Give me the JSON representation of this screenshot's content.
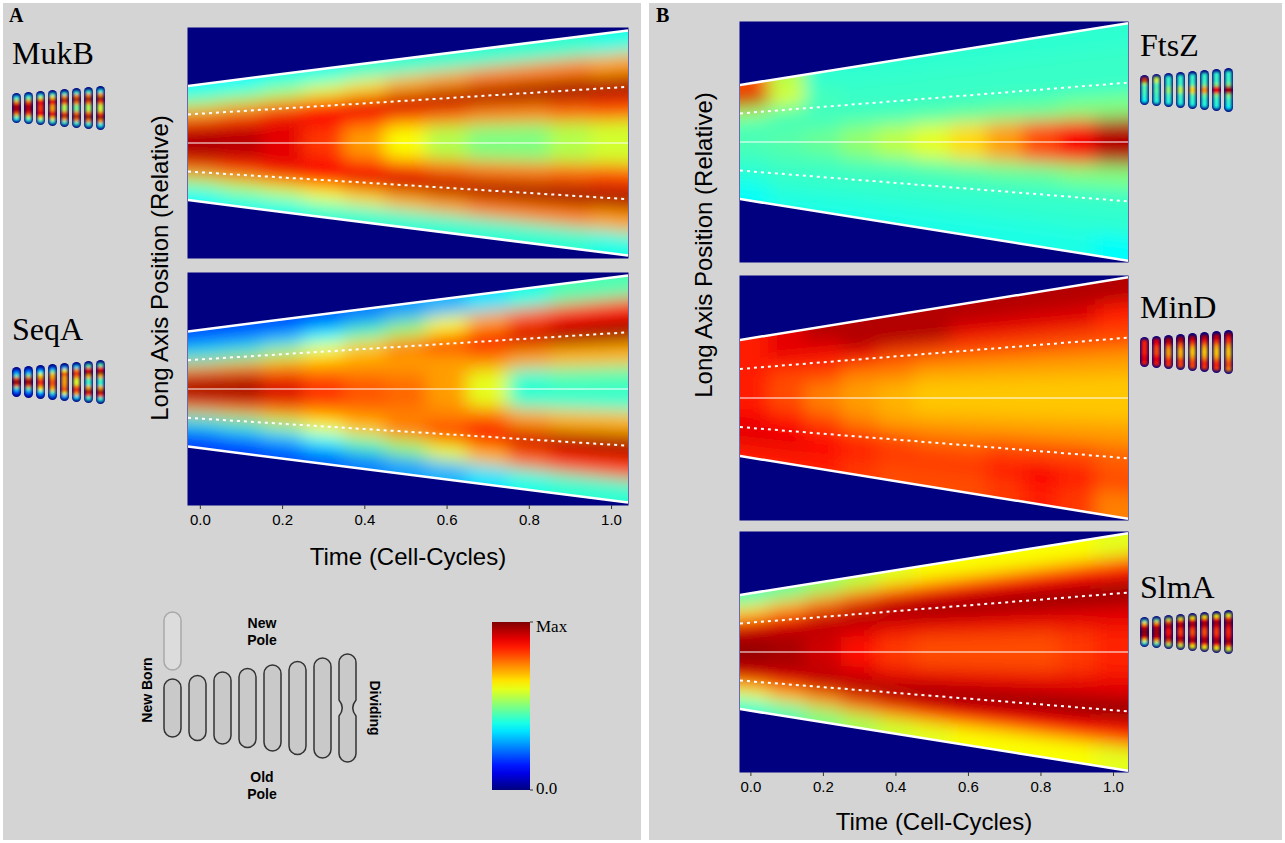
{
  "chart_data": [
    {
      "type": "heatmap",
      "title": "MukB",
      "y_label": "Long Axis Position (Relative)",
      "tick_labels": false,
      "xlim": [
        -0.03,
        1.04
      ],
      "ylim": [
        -1,
        1
      ],
      "cell_edge": [
        0.51,
        0.96
      ],
      "x": [
        0,
        0.1,
        0.2,
        0.3,
        0.4,
        0.5,
        0.6,
        0.7,
        0.8,
        0.9,
        1.0
      ],
      "positions": [
        0.9,
        0.7,
        0.5,
        0.3,
        0.1,
        -0.1,
        -0.3,
        -0.5,
        -0.7,
        -0.9
      ],
      "z": [
        [
          0.38,
          0.38,
          0.4,
          0.4,
          0.42,
          0.42,
          0.42,
          0.42,
          0.42,
          0.42,
          0.4
        ],
        [
          0.5,
          0.52,
          0.55,
          0.6,
          0.65,
          0.7,
          0.72,
          0.75,
          0.75,
          0.75,
          0.72
        ],
        [
          0.72,
          0.75,
          0.8,
          0.85,
          0.9,
          0.93,
          0.95,
          0.96,
          0.97,
          0.97,
          0.96
        ],
        [
          0.9,
          0.9,
          0.9,
          0.88,
          0.85,
          0.8,
          0.78,
          0.75,
          0.75,
          0.78,
          0.8
        ],
        [
          0.96,
          0.95,
          0.9,
          0.82,
          0.72,
          0.62,
          0.55,
          0.5,
          0.5,
          0.55,
          0.58
        ],
        [
          0.96,
          0.95,
          0.9,
          0.82,
          0.72,
          0.62,
          0.55,
          0.5,
          0.5,
          0.55,
          0.58
        ],
        [
          0.92,
          0.9,
          0.9,
          0.88,
          0.85,
          0.82,
          0.78,
          0.76,
          0.76,
          0.78,
          0.8
        ],
        [
          0.75,
          0.78,
          0.82,
          0.86,
          0.9,
          0.93,
          0.95,
          0.96,
          0.97,
          0.97,
          0.96
        ],
        [
          0.52,
          0.55,
          0.58,
          0.62,
          0.66,
          0.7,
          0.72,
          0.75,
          0.75,
          0.75,
          0.72
        ],
        [
          0.38,
          0.4,
          0.4,
          0.42,
          0.42,
          0.42,
          0.42,
          0.42,
          0.42,
          0.42,
          0.4
        ]
      ]
    },
    {
      "type": "heatmap",
      "title": "SeqA",
      "x_label": "Time (Cell-Cycles)",
      "tick_labels": "x",
      "xlim": [
        -0.03,
        1.04
      ],
      "ylim": [
        -1,
        1
      ],
      "cell_edge": [
        0.51,
        0.96
      ],
      "xticks": [
        {
          "value": 0,
          "label": "0.0"
        },
        {
          "value": 0.2,
          "label": "0.2"
        },
        {
          "value": 0.4,
          "label": "0.4"
        },
        {
          "value": 0.6,
          "label": "0.6"
        },
        {
          "value": 0.8,
          "label": "0.8"
        },
        {
          "value": 1,
          "label": "1.0"
        }
      ],
      "x": [
        0,
        0.1,
        0.2,
        0.3,
        0.4,
        0.5,
        0.6,
        0.7,
        0.8,
        0.9,
        1.0
      ],
      "positions": [
        0.9,
        0.7,
        0.5,
        0.3,
        0.1,
        -0.1,
        -0.3,
        -0.5,
        -0.7,
        -0.9
      ],
      "z": [
        [
          0.2,
          0.2,
          0.2,
          0.22,
          0.25,
          0.28,
          0.3,
          0.35,
          0.4,
          0.45,
          0.45
        ],
        [
          0.3,
          0.3,
          0.32,
          0.38,
          0.45,
          0.52,
          0.62,
          0.72,
          0.8,
          0.85,
          0.85
        ],
        [
          0.45,
          0.48,
          0.55,
          0.62,
          0.68,
          0.75,
          0.82,
          0.88,
          0.92,
          0.96,
          0.97
        ],
        [
          0.78,
          0.78,
          0.75,
          0.72,
          0.72,
          0.72,
          0.72,
          0.75,
          0.72,
          0.7,
          0.7
        ],
        [
          0.96,
          0.96,
          0.9,
          0.82,
          0.78,
          0.76,
          0.72,
          0.6,
          0.42,
          0.45,
          0.45
        ],
        [
          0.97,
          0.97,
          0.92,
          0.85,
          0.8,
          0.78,
          0.72,
          0.6,
          0.42,
          0.42,
          0.42
        ],
        [
          0.8,
          0.8,
          0.78,
          0.75,
          0.75,
          0.75,
          0.75,
          0.78,
          0.72,
          0.7,
          0.7
        ],
        [
          0.45,
          0.48,
          0.55,
          0.62,
          0.68,
          0.75,
          0.82,
          0.88,
          0.92,
          0.95,
          0.96
        ],
        [
          0.28,
          0.3,
          0.32,
          0.38,
          0.45,
          0.52,
          0.6,
          0.7,
          0.78,
          0.82,
          0.82
        ],
        [
          0.18,
          0.18,
          0.2,
          0.22,
          0.25,
          0.28,
          0.3,
          0.35,
          0.4,
          0.42,
          0.42
        ]
      ]
    },
    {
      "type": "heatmap",
      "title": "FtsZ",
      "y_label": "Long Axis Position (Relative)",
      "tick_labels": false,
      "xlim": [
        -0.03,
        1.04
      ],
      "ylim": [
        -1,
        1
      ],
      "cell_edge": [
        0.49,
        0.97
      ],
      "x": [
        0,
        0.1,
        0.2,
        0.3,
        0.4,
        0.5,
        0.6,
        0.7,
        0.8,
        0.9,
        1.0
      ],
      "positions": [
        0.9,
        0.7,
        0.5,
        0.3,
        0.1,
        -0.1,
        -0.3,
        -0.5,
        -0.7,
        -0.9
      ],
      "z": [
        [
          0.8,
          0.55,
          0.42,
          0.42,
          0.42,
          0.42,
          0.42,
          0.42,
          0.42,
          0.42,
          0.42
        ],
        [
          0.95,
          0.6,
          0.44,
          0.43,
          0.43,
          0.43,
          0.43,
          0.43,
          0.43,
          0.43,
          0.43
        ],
        [
          0.55,
          0.48,
          0.44,
          0.43,
          0.43,
          0.43,
          0.43,
          0.43,
          0.43,
          0.43,
          0.43
        ],
        [
          0.44,
          0.44,
          0.44,
          0.45,
          0.45,
          0.46,
          0.47,
          0.48,
          0.48,
          0.5,
          0.5
        ],
        [
          0.45,
          0.46,
          0.48,
          0.52,
          0.56,
          0.6,
          0.66,
          0.72,
          0.8,
          0.88,
          0.95
        ],
        [
          0.45,
          0.46,
          0.48,
          0.52,
          0.56,
          0.6,
          0.66,
          0.72,
          0.8,
          0.88,
          0.95
        ],
        [
          0.43,
          0.44,
          0.44,
          0.45,
          0.45,
          0.46,
          0.47,
          0.48,
          0.48,
          0.5,
          0.5
        ],
        [
          0.42,
          0.43,
          0.43,
          0.43,
          0.43,
          0.43,
          0.43,
          0.43,
          0.43,
          0.43,
          0.43
        ],
        [
          0.4,
          0.42,
          0.42,
          0.42,
          0.42,
          0.42,
          0.42,
          0.42,
          0.42,
          0.42,
          0.42
        ],
        [
          0.38,
          0.4,
          0.4,
          0.4,
          0.4,
          0.4,
          0.4,
          0.4,
          0.4,
          0.4,
          0.38
        ]
      ]
    },
    {
      "type": "heatmap",
      "title": "MinD",
      "tick_labels": false,
      "xlim": [
        -0.03,
        1.04
      ],
      "ylim": [
        -1,
        1
      ],
      "cell_edge": [
        0.49,
        0.97
      ],
      "x": [
        0,
        0.1,
        0.2,
        0.3,
        0.4,
        0.5,
        0.6,
        0.7,
        0.8,
        0.9,
        1.0
      ],
      "positions": [
        0.9,
        0.7,
        0.5,
        0.3,
        0.1,
        -0.1,
        -0.3,
        -0.5,
        -0.7,
        -0.9
      ],
      "z": [
        [
          0.85,
          0.9,
          0.95,
          0.95,
          0.95,
          0.95,
          0.95,
          0.95,
          0.95,
          0.95,
          0.95
        ],
        [
          0.85,
          0.9,
          0.9,
          0.95,
          0.95,
          0.95,
          0.9,
          0.9,
          0.9,
          0.9,
          0.85
        ],
        [
          0.85,
          0.85,
          0.85,
          0.85,
          0.8,
          0.8,
          0.8,
          0.8,
          0.8,
          0.8,
          0.8
        ],
        [
          0.85,
          0.8,
          0.8,
          0.75,
          0.75,
          0.72,
          0.72,
          0.72,
          0.72,
          0.72,
          0.72
        ],
        [
          0.85,
          0.8,
          0.75,
          0.72,
          0.7,
          0.68,
          0.68,
          0.68,
          0.68,
          0.68,
          0.68
        ],
        [
          0.85,
          0.8,
          0.75,
          0.72,
          0.7,
          0.68,
          0.68,
          0.68,
          0.68,
          0.68,
          0.68
        ],
        [
          0.88,
          0.85,
          0.8,
          0.75,
          0.72,
          0.72,
          0.72,
          0.72,
          0.72,
          0.72,
          0.72
        ],
        [
          0.9,
          0.88,
          0.85,
          0.82,
          0.8,
          0.78,
          0.78,
          0.8,
          0.8,
          0.8,
          0.78
        ],
        [
          0.9,
          0.9,
          0.88,
          0.85,
          0.82,
          0.82,
          0.82,
          0.85,
          0.88,
          0.85,
          0.8
        ],
        [
          0.85,
          0.85,
          0.85,
          0.82,
          0.8,
          0.8,
          0.8,
          0.82,
          0.85,
          0.82,
          0.75
        ]
      ]
    },
    {
      "type": "heatmap",
      "title": "SlmA",
      "x_label": "Time (Cell-Cycles)",
      "tick_labels": "x",
      "xlim": [
        -0.03,
        1.04
      ],
      "ylim": [
        -1,
        1
      ],
      "cell_edge": [
        0.49,
        0.97
      ],
      "xticks": [
        {
          "value": 0,
          "label": "0.0"
        },
        {
          "value": 0.2,
          "label": "0.2"
        },
        {
          "value": 0.4,
          "label": "0.4"
        },
        {
          "value": 0.6,
          "label": "0.6"
        },
        {
          "value": 0.8,
          "label": "0.8"
        },
        {
          "value": 1,
          "label": "1.0"
        }
      ],
      "x": [
        0,
        0.1,
        0.2,
        0.3,
        0.4,
        0.5,
        0.6,
        0.7,
        0.8,
        0.9,
        1.0
      ],
      "positions": [
        0.9,
        0.7,
        0.5,
        0.3,
        0.1,
        -0.1,
        -0.3,
        -0.5,
        -0.7,
        -0.9
      ],
      "z": [
        [
          0.45,
          0.48,
          0.52,
          0.56,
          0.6,
          0.62,
          0.62,
          0.62,
          0.62,
          0.62,
          0.6
        ],
        [
          0.65,
          0.7,
          0.75,
          0.8,
          0.84,
          0.86,
          0.86,
          0.86,
          0.86,
          0.86,
          0.85
        ],
        [
          0.85,
          0.88,
          0.92,
          0.95,
          0.97,
          0.98,
          0.98,
          0.98,
          0.98,
          0.98,
          0.98
        ],
        [
          0.95,
          0.95,
          0.94,
          0.92,
          0.9,
          0.9,
          0.9,
          0.9,
          0.9,
          0.9,
          0.9
        ],
        [
          0.98,
          0.96,
          0.92,
          0.86,
          0.82,
          0.8,
          0.8,
          0.8,
          0.8,
          0.82,
          0.84
        ],
        [
          0.98,
          0.96,
          0.92,
          0.86,
          0.82,
          0.8,
          0.8,
          0.8,
          0.8,
          0.82,
          0.84
        ],
        [
          0.95,
          0.95,
          0.94,
          0.92,
          0.9,
          0.9,
          0.9,
          0.9,
          0.9,
          0.9,
          0.9
        ],
        [
          0.85,
          0.88,
          0.92,
          0.95,
          0.97,
          0.98,
          0.98,
          0.98,
          0.98,
          0.98,
          0.98
        ],
        [
          0.62,
          0.68,
          0.72,
          0.78,
          0.82,
          0.85,
          0.86,
          0.86,
          0.86,
          0.86,
          0.85
        ],
        [
          0.42,
          0.45,
          0.5,
          0.54,
          0.58,
          0.6,
          0.62,
          0.62,
          0.62,
          0.62,
          0.6
        ]
      ]
    }
  ],
  "panels": [
    "A",
    "B"
  ],
  "colorbar": {
    "range": [
      0,
      1
    ],
    "ticks": [
      {
        "value": 0,
        "label": "0.0"
      },
      {
        "value": 1,
        "label": "Max"
      }
    ]
  },
  "schematic": {
    "new_born": "New Born",
    "new_pole": "New Pole",
    "old_pole": "Old Pole",
    "dividing": "Dividing"
  }
}
